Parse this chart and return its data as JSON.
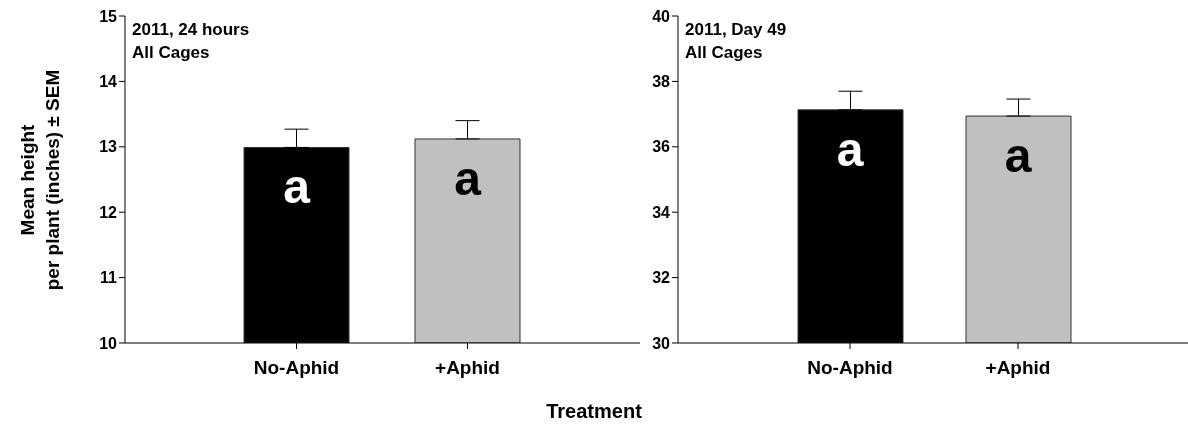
{
  "chart_data": [
    {
      "type": "bar",
      "title": "2011, 24 hours",
      "subtitle": "All Cages",
      "ylabel": "Mean height\nper plant (inches) ±  SEM",
      "categories": [
        "No-Aphid",
        "+Aphid"
      ],
      "values": [
        12.99,
        13.12
      ],
      "colors": [
        "#000000",
        "#c0c0c0"
      ],
      "errors": [
        [
          12.99,
          13.27
        ],
        [
          13.12,
          13.4
        ]
      ],
      "ylim": [
        10,
        15
      ],
      "yticks": [
        10,
        11,
        12,
        13,
        14,
        15
      ],
      "grid": false,
      "legend": false,
      "annotations": [
        {
          "text": "a",
          "x": "No-Aphid",
          "y": 12.99
        },
        {
          "text": "a",
          "x": "+Aphid",
          "y": 13.12
        }
      ]
    },
    {
      "type": "bar",
      "title": "2011, Day 49",
      "subtitle": "All Cages",
      "xlabel": "Treatment",
      "categories": [
        "No-Aphid",
        "+Aphid"
      ],
      "values": [
        37.13,
        36.94
      ],
      "colors": [
        "#000000",
        "#c0c0c0"
      ],
      "errors": [
        [
          37.13,
          37.7
        ],
        [
          36.94,
          37.46
        ]
      ],
      "ylim": [
        30,
        40
      ],
      "yticks": [
        30,
        32,
        34,
        36,
        38,
        40
      ],
      "grid": false,
      "legend": false,
      "annotations": [
        {
          "text": "a",
          "x": "No-Aphid",
          "y": 37.13
        },
        {
          "text": "a",
          "x": "+Aphid",
          "y": 36.94
        }
      ]
    }
  ]
}
